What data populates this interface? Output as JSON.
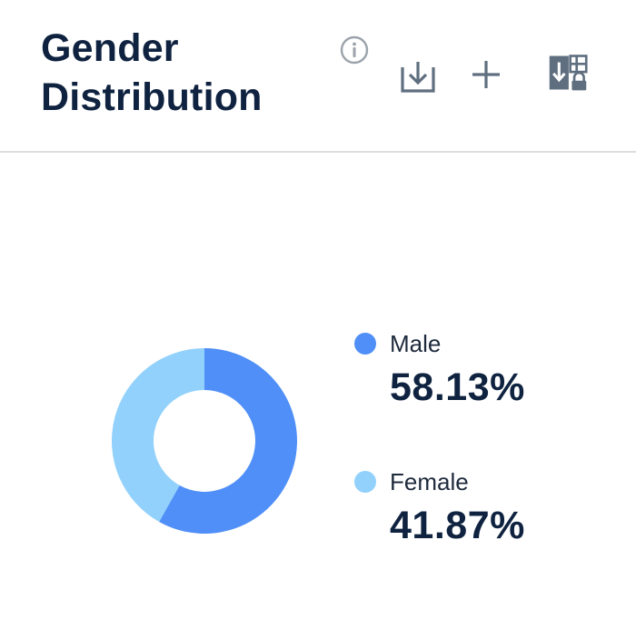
{
  "header": {
    "title": "Gender Distribution",
    "icons": {
      "info": "info-icon",
      "download": "download-icon",
      "add": "add-icon",
      "excel": "excel-export-icon"
    }
  },
  "colors": {
    "male": "#4f8ff7",
    "female": "#91d1fc",
    "title": "#0f2340",
    "icon": "#5f6f7f"
  },
  "chart_data": {
    "type": "pie",
    "title": "Gender Distribution",
    "categories": [
      "Male",
      "Female"
    ],
    "values": [
      58.13,
      41.87
    ],
    "labels": [
      "58.13%",
      "41.87%"
    ],
    "colors": [
      "#4f8ff7",
      "#91d1fc"
    ],
    "legend": "right"
  }
}
